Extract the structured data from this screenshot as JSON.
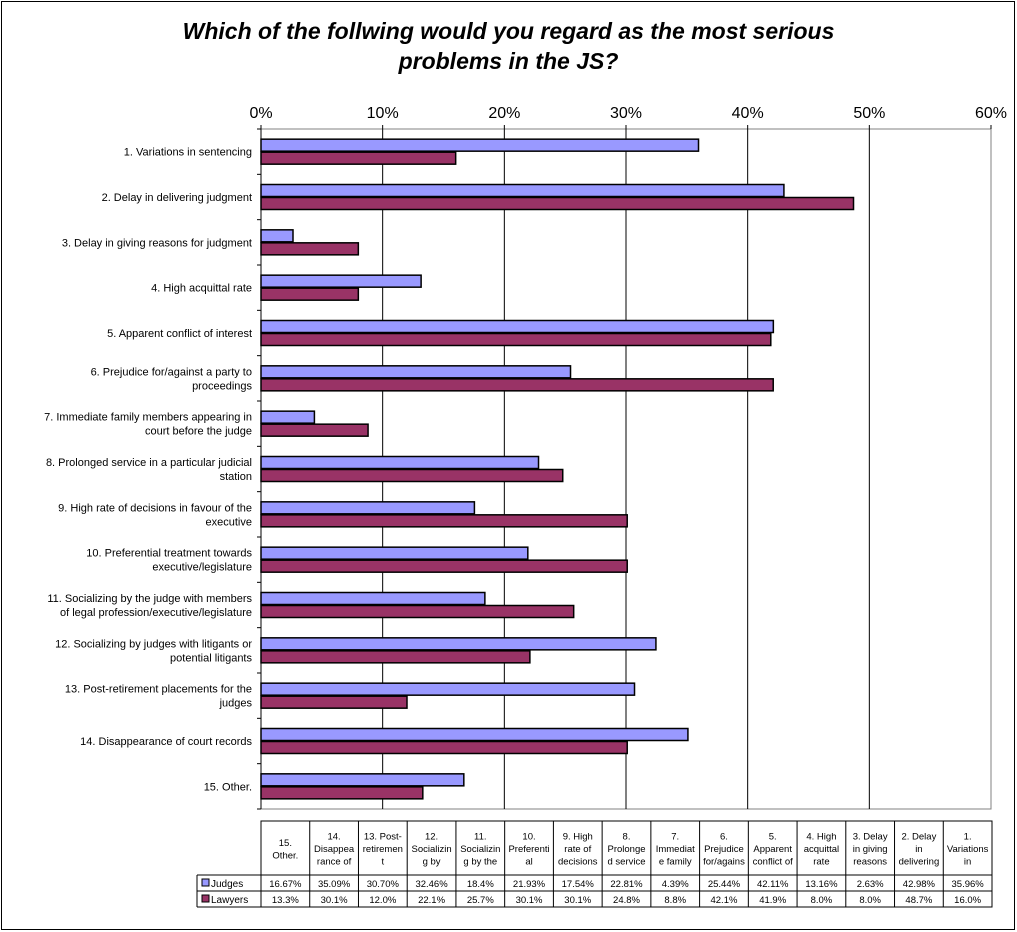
{
  "chart_data": {
    "type": "bar",
    "orientation": "horizontal",
    "title_lines": [
      "Which of the follwing would you regard as the most serious",
      "problems in the JS?"
    ],
    "xlim": [
      0,
      60
    ],
    "x_ticks": [
      "0%",
      "10%",
      "20%",
      "30%",
      "40%",
      "50%",
      "60%"
    ],
    "grid": true,
    "categories": [
      [
        "1. Variations in sentencing"
      ],
      [
        "2. Delay in delivering judgment"
      ],
      [
        "3. Delay in giving reasons for judgment"
      ],
      [
        "4. High acquittal rate"
      ],
      [
        "5. Apparent conflict of interest"
      ],
      [
        "6. Prejudice for/against a party to",
        "proceedings"
      ],
      [
        "7. Immediate family members appearing in",
        "court before the judge"
      ],
      [
        "8. Prolonged service in a particular judicial",
        "station"
      ],
      [
        "9. High rate of decisions in favour of the",
        "executive"
      ],
      [
        "10. Preferential treatment towards",
        "executive/legislature"
      ],
      [
        "11. Socializing by the judge with members",
        "of legal profession/executive/legislature"
      ],
      [
        "12. Socializing by judges with litigants or",
        "potential litigants"
      ],
      [
        "13. Post-retirement placements for the",
        "judges"
      ],
      [
        "14. Disappearance of court records"
      ],
      [
        "15. Other."
      ]
    ],
    "series": [
      {
        "name": "Judges",
        "color": "#9999ff",
        "values": [
          35.96,
          42.98,
          2.63,
          13.16,
          42.11,
          25.44,
          4.39,
          22.81,
          17.54,
          21.93,
          18.4,
          32.46,
          30.7,
          35.09,
          16.67
        ]
      },
      {
        "name": "Lawyers",
        "color": "#993366",
        "values": [
          16.0,
          48.7,
          8.0,
          8.0,
          41.9,
          42.1,
          8.8,
          24.8,
          30.1,
          30.1,
          25.7,
          22.1,
          12.0,
          30.1,
          13.3
        ]
      }
    ],
    "legend": "data-table",
    "table": {
      "column_headers": [
        [
          "15.",
          "Other."
        ],
        [
          "14.",
          "Disappea",
          "rance of"
        ],
        [
          "13. Post-",
          "retiremen",
          "t"
        ],
        [
          "12.",
          "Socializin",
          "g by"
        ],
        [
          "11.",
          "Socializin",
          "g by the"
        ],
        [
          "10.",
          "Preferenti",
          "al"
        ],
        [
          "9. High",
          "rate of",
          "decisions"
        ],
        [
          "8.",
          "Prolonge",
          "d service"
        ],
        [
          "7.",
          "Immediat",
          "e family"
        ],
        [
          "6.",
          "Prejudice",
          "for/agains"
        ],
        [
          "5.",
          "Apparent",
          "conflict of"
        ],
        [
          "4. High",
          "acquittal",
          "rate"
        ],
        [
          "3. Delay",
          "in giving",
          "reasons"
        ],
        [
          "2. Delay",
          "in",
          "delivering"
        ],
        [
          "1.",
          "Variations",
          "in"
        ]
      ],
      "rows": [
        {
          "label": "Judges",
          "color": "#9999ff",
          "cells": [
            "16.67%",
            "35.09%",
            "30.70%",
            "32.46%",
            "18.4%",
            "21.93%",
            "17.54%",
            "22.81%",
            "4.39%",
            "25.44%",
            "42.11%",
            "13.16%",
            "2.63%",
            "42.98%",
            "35.96%"
          ]
        },
        {
          "label": "Lawyers",
          "color": "#993366",
          "cells": [
            "13.3%",
            "30.1%",
            "12.0%",
            "22.1%",
            "25.7%",
            "30.1%",
            "30.1%",
            "24.8%",
            "8.8%",
            "42.1%",
            "41.9%",
            "8.0%",
            "8.0%",
            "48.7%",
            "16.0%"
          ]
        }
      ]
    }
  }
}
